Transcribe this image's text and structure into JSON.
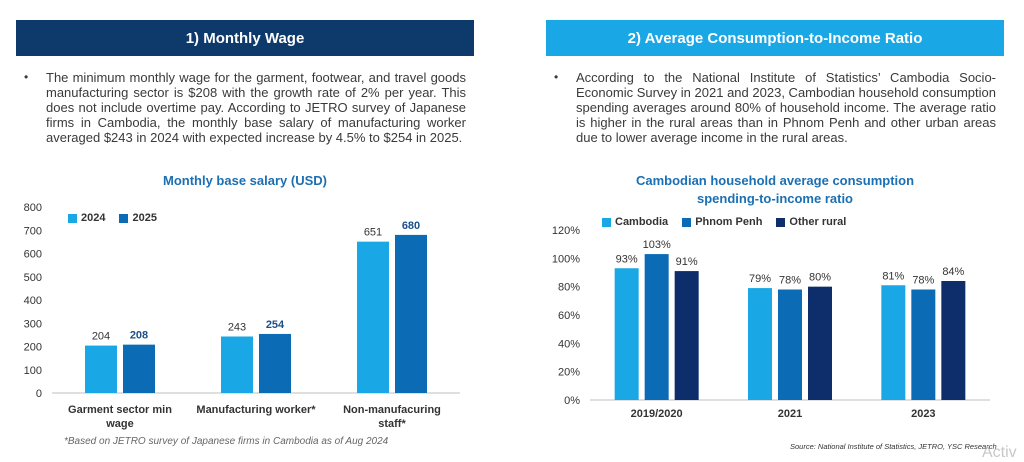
{
  "sections": {
    "left": {
      "header": "1)  Monthly Wage",
      "bullet": "The minimum monthly wage for the garment, footwear, and travel goods manufacturing sector is $208 with the growth rate of 2% per year. This does not include overtime pay. According to JETRO survey of Japanese firms in Cambodia, the monthly base salary of manufacturing worker averaged $243 in 2024 with expected increase by 4.5% to $254 in 2025.",
      "footnote": "*Based on JETRO survey of Japanese firms in Cambodia as of Aug 2024"
    },
    "right": {
      "header": "2) Average Consumption-to-Income Ratio",
      "bullet": "According to the National Institute of Statistics’ Cambodia Socio-Economic Survey in 2021 and 2023, Cambodian household consumption spending averages around 80% of household income. The average ratio is higher in the rural areas than in Phnom Penh and other urban areas due to lower average income in the rural areas.",
      "source": "Source: National Institute of Statistics, JETRO, YSC Research",
      "watermark": "Activ"
    },
    "bullet_glyph": "•"
  },
  "colors": {
    "light": "#1aa7e6",
    "mid": "#0b6cb5",
    "dark": "#0e2d6b",
    "axis": "#bfbfbf"
  },
  "chart_data": [
    {
      "type": "bar",
      "title": "Monthly base salary (USD)",
      "categories": [
        "Garment sector min wage",
        "Manufacturing worker*",
        "Non-manufacuring staff*"
      ],
      "category_lines": [
        [
          "Garment sector min",
          "wage"
        ],
        [
          "Manufacturing worker*"
        ],
        [
          "Non-manufacuring",
          "staff*"
        ]
      ],
      "series": [
        {
          "name": "2024",
          "values": [
            204,
            243,
            651
          ],
          "labels": [
            "204",
            "243",
            "651"
          ],
          "color": "#1aa7e6"
        },
        {
          "name": "2025",
          "values": [
            208,
            254,
            680
          ],
          "labels": [
            "208",
            "254",
            "680"
          ],
          "color": "#0b6cb5"
        }
      ],
      "ylim": [
        0,
        800
      ],
      "yticks": [
        "0",
        "100",
        "200",
        "300",
        "400",
        "500",
        "600",
        "700",
        "800"
      ],
      "legend": "top-left",
      "grid": false
    },
    {
      "type": "bar",
      "title": "Cambodian household average consumption spending-to-income ratio",
      "title_lines": [
        "Cambodian household average consumption",
        "spending-to-income ratio"
      ],
      "categories": [
        "2019/2020",
        "2021",
        "2023"
      ],
      "category_lines": [
        [
          "2019/2020"
        ],
        [
          "2021"
        ],
        [
          "2023"
        ]
      ],
      "series": [
        {
          "name": "Cambodia",
          "values": [
            93,
            79,
            81
          ],
          "labels": [
            "93%",
            "79%",
            "81%"
          ],
          "color": "#1aa7e6"
        },
        {
          "name": "Phnom Penh",
          "values": [
            103,
            78,
            78
          ],
          "labels": [
            "103%",
            "78%",
            "78%"
          ],
          "color": "#0b6cb5"
        },
        {
          "name": "Other rural",
          "values": [
            91,
            80,
            84
          ],
          "labels": [
            "91%",
            "80%",
            "84%"
          ],
          "color": "#0e2d6b"
        }
      ],
      "ylim": [
        0,
        120
      ],
      "yticks": [
        "0%",
        "20%",
        "40%",
        "60%",
        "80%",
        "100%",
        "120%"
      ],
      "legend": "top-left",
      "grid": false
    }
  ]
}
